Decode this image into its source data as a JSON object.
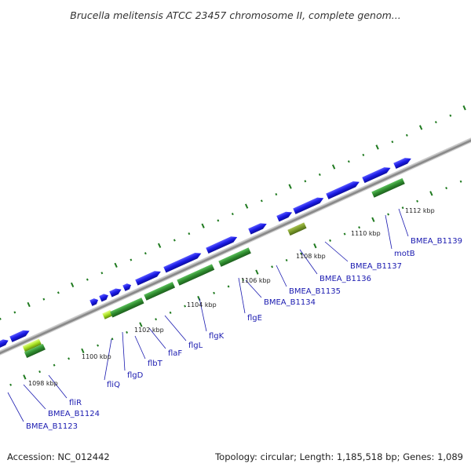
{
  "title": "Brucella melitensis ATCC 23457 chromosome II, complete genom...",
  "footer": {
    "accession": "Accession: NC_012442",
    "summary": "Topology: circular; Length: 1,185,518 bp; Genes: 1,089"
  },
  "colors": {
    "forward_gene": "#1a1ae6",
    "reverse_gene": "#2e8b2e",
    "highlight_gene": "#a6e020",
    "olive_gene": "#7a9a2a",
    "backbone": "#8a8a8a",
    "gc_skew": "#1f7a1f",
    "label": "#1a1ab0"
  },
  "kbp_ticks": [
    "1098 kbp",
    "1100 kbp",
    "1102 kbp",
    "1104 kbp",
    "1106 kbp",
    "1108 kbp",
    "1110 kbp",
    "1112 kbp"
  ],
  "gene_labels": [
    "BMEA_B1123",
    "BMEA_B1124",
    "fliR",
    "fliQ",
    "flgD",
    "flbT",
    "flaF",
    "flgL",
    "flgK",
    "flgE",
    "BMEA_B1134",
    "BMEA_B1135",
    "BMEA_B1136",
    "BMEA_B1137",
    "motB",
    "BMEA_B1139"
  ]
}
